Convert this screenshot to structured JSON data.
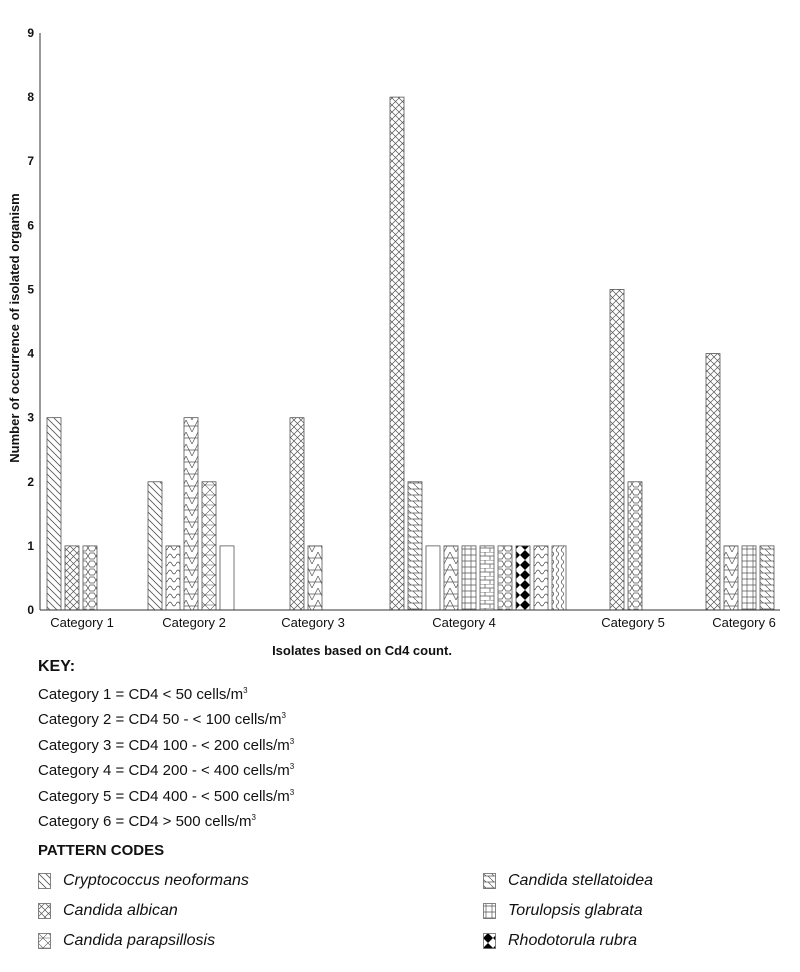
{
  "chart_data": {
    "type": "bar",
    "xlabel": "Isolates based on Cd4 count.",
    "ylabel": "Number of occurrence of isolated organism",
    "ylim": [
      0,
      9
    ],
    "yticks": [
      "0",
      "1",
      "2",
      "3",
      "4",
      "5",
      "6",
      "7",
      "8",
      "9"
    ],
    "grid": false,
    "categories": [
      {
        "label": "Category 1",
        "bars": [
          {
            "value": 3,
            "pattern": "diag"
          },
          {
            "value": 1,
            "pattern": "cross"
          },
          {
            "value": 1,
            "pattern": "hex"
          }
        ]
      },
      {
        "label": "Category 2",
        "bars": [
          {
            "value": 2,
            "pattern": "diag"
          },
          {
            "value": 1,
            "pattern": "wave"
          },
          {
            "value": 3,
            "pattern": "triangle"
          },
          {
            "value": 2,
            "pattern": "para"
          },
          {
            "value": 1,
            "pattern": "blank"
          }
        ]
      },
      {
        "label": "Category 3",
        "bars": [
          {
            "value": 3,
            "pattern": "cross"
          },
          {
            "value": 1,
            "pattern": "triangle"
          }
        ]
      },
      {
        "label": "Category 4",
        "bars": [
          {
            "value": 8,
            "pattern": "cross"
          },
          {
            "value": 2,
            "pattern": "stella"
          },
          {
            "value": 1,
            "pattern": "blank"
          },
          {
            "value": 1,
            "pattern": "triangle"
          },
          {
            "value": 1,
            "pattern": "grid"
          },
          {
            "value": 1,
            "pattern": "brick"
          },
          {
            "value": 1,
            "pattern": "hex"
          },
          {
            "value": 1,
            "pattern": "diamond"
          },
          {
            "value": 1,
            "pattern": "wave"
          },
          {
            "value": 1,
            "pattern": "vwave"
          }
        ]
      },
      {
        "label": "Category 5",
        "bars": [
          {
            "value": 5,
            "pattern": "cross"
          },
          {
            "value": 2,
            "pattern": "hex"
          }
        ]
      },
      {
        "label": "Category 6",
        "bars": [
          {
            "value": 4,
            "pattern": "cross"
          },
          {
            "value": 1,
            "pattern": "triangle"
          },
          {
            "value": 1,
            "pattern": "grid"
          },
          {
            "value": 1,
            "pattern": "stella"
          }
        ]
      }
    ]
  },
  "key": {
    "title": "KEY:",
    "lines": [
      "Category 1 = CD4 < 50 cells/m",
      "Category 2 = CD4 50 - < 100 cells/m",
      "Category 3 = CD4 100 - < 200 cells/m",
      "Category 4 = CD4 200 - < 400 cells/m",
      "Category 5 = CD4 400 - < 500 cells/m",
      "Category 6 = CD4 > 500 cells/m"
    ],
    "superscript": "3"
  },
  "pattern_codes": {
    "title": "PATTERN CODES",
    "left": [
      {
        "name": "Cryptococcus neoformans",
        "pattern": "diag"
      },
      {
        "name": "Candida albican",
        "pattern": "cross"
      },
      {
        "name": "Candida parapsillosis",
        "pattern": "para"
      }
    ],
    "right": [
      {
        "name": "Candida stellatoidea",
        "pattern": "stella"
      },
      {
        "name": "Torulopsis glabrata",
        "pattern": "grid"
      },
      {
        "name": "Rhodotorula rubra",
        "pattern": "diamond"
      }
    ]
  }
}
